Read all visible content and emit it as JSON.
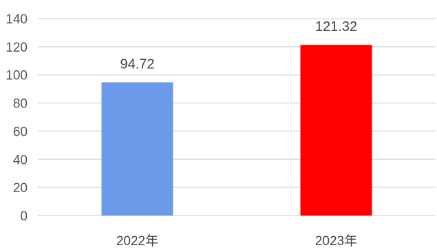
{
  "chart_data": {
    "type": "bar",
    "title": "",
    "xlabel": "",
    "ylabel": "",
    "categories": [
      "2022年",
      "2023年"
    ],
    "values": [
      94.72,
      121.32
    ],
    "value_labels": [
      "94.72",
      "121.32"
    ],
    "bar_colors": [
      "#6b9be8",
      "#ff0000"
    ],
    "ylim": [
      0,
      140
    ],
    "yticks": [
      0,
      20,
      40,
      60,
      80,
      100,
      120,
      140
    ],
    "grid": true,
    "gridline_color": "#d8dde6",
    "legend": "none"
  }
}
